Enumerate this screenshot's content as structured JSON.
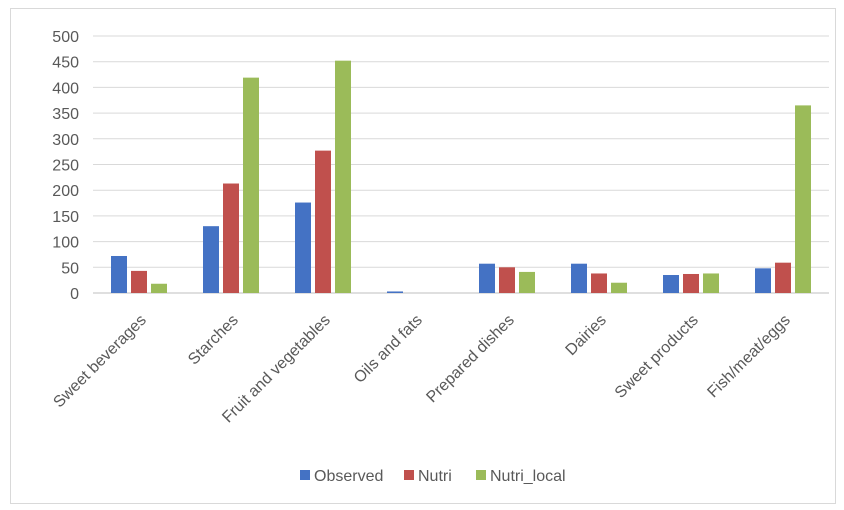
{
  "chart_data": {
    "type": "bar",
    "categories": [
      "Sweet beverages",
      "Starches",
      "Fruit and vegetables",
      "Oils and fats",
      "Prepared dishes",
      "Dairies",
      "Sweet products",
      "Fish/meat/eggs"
    ],
    "series": [
      {
        "name": "Observed",
        "color": "#4472c4",
        "values": [
          72,
          130,
          176,
          3,
          57,
          57,
          35,
          48
        ]
      },
      {
        "name": "Nutri",
        "color": "#c0504d",
        "values": [
          43,
          213,
          277,
          0,
          50,
          38,
          37,
          59
        ]
      },
      {
        "name": "Nutri_local",
        "color": "#9bbb59",
        "values": [
          18,
          419,
          452,
          0,
          41,
          20,
          38,
          365
        ]
      }
    ],
    "ylim": [
      0,
      500
    ],
    "yticks": [
      0,
      50,
      100,
      150,
      200,
      250,
      300,
      350,
      400,
      450,
      500
    ],
    "grid": true,
    "legend_position": "bottom"
  }
}
